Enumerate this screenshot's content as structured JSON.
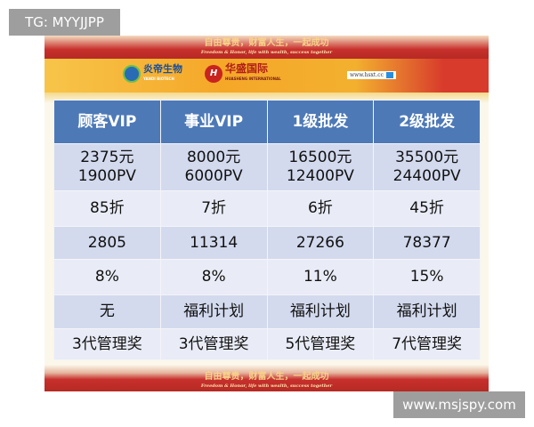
{
  "overlay": {
    "tag": "TG: MYYJJPP",
    "watermark": "www.msjspy.com"
  },
  "banner": {
    "slogan_cn": "自由尊贵，财富人生，一起成功",
    "slogan_en": "Freedom & Honor, life with wealth, success together",
    "logo1_cn": "炎帝生物",
    "logo1_en": "YANDI BIOTECH",
    "logo2_cn": "华盛国际",
    "logo2_en": "HUASHENG INTERNATIONAL",
    "url": "www.hsxt.cc"
  },
  "table": {
    "headers": [
      "顾客VIP",
      "事业VIP",
      "1级批发",
      "2级批发"
    ],
    "rows": [
      [
        [
          "2375元",
          "1900PV"
        ],
        [
          "8000元",
          "6000PV"
        ],
        [
          "16500元",
          "12400PV"
        ],
        [
          "35500元",
          "24400PV"
        ]
      ],
      [
        [
          "85折"
        ],
        [
          "7折"
        ],
        [
          "6折"
        ],
        [
          "45折"
        ]
      ],
      [
        [
          "2805"
        ],
        [
          "11314"
        ],
        [
          "27266"
        ],
        [
          "78377"
        ]
      ],
      [
        [
          "8%"
        ],
        [
          "8%"
        ],
        [
          "11%"
        ],
        [
          "15%"
        ]
      ],
      [
        [
          "无"
        ],
        [
          "福利计划"
        ],
        [
          "福利计划"
        ],
        [
          "福利计划"
        ]
      ],
      [
        [
          "3代管理奖"
        ],
        [
          "3代管理奖"
        ],
        [
          "5代管理奖"
        ],
        [
          "7代管理奖"
        ]
      ]
    ]
  }
}
